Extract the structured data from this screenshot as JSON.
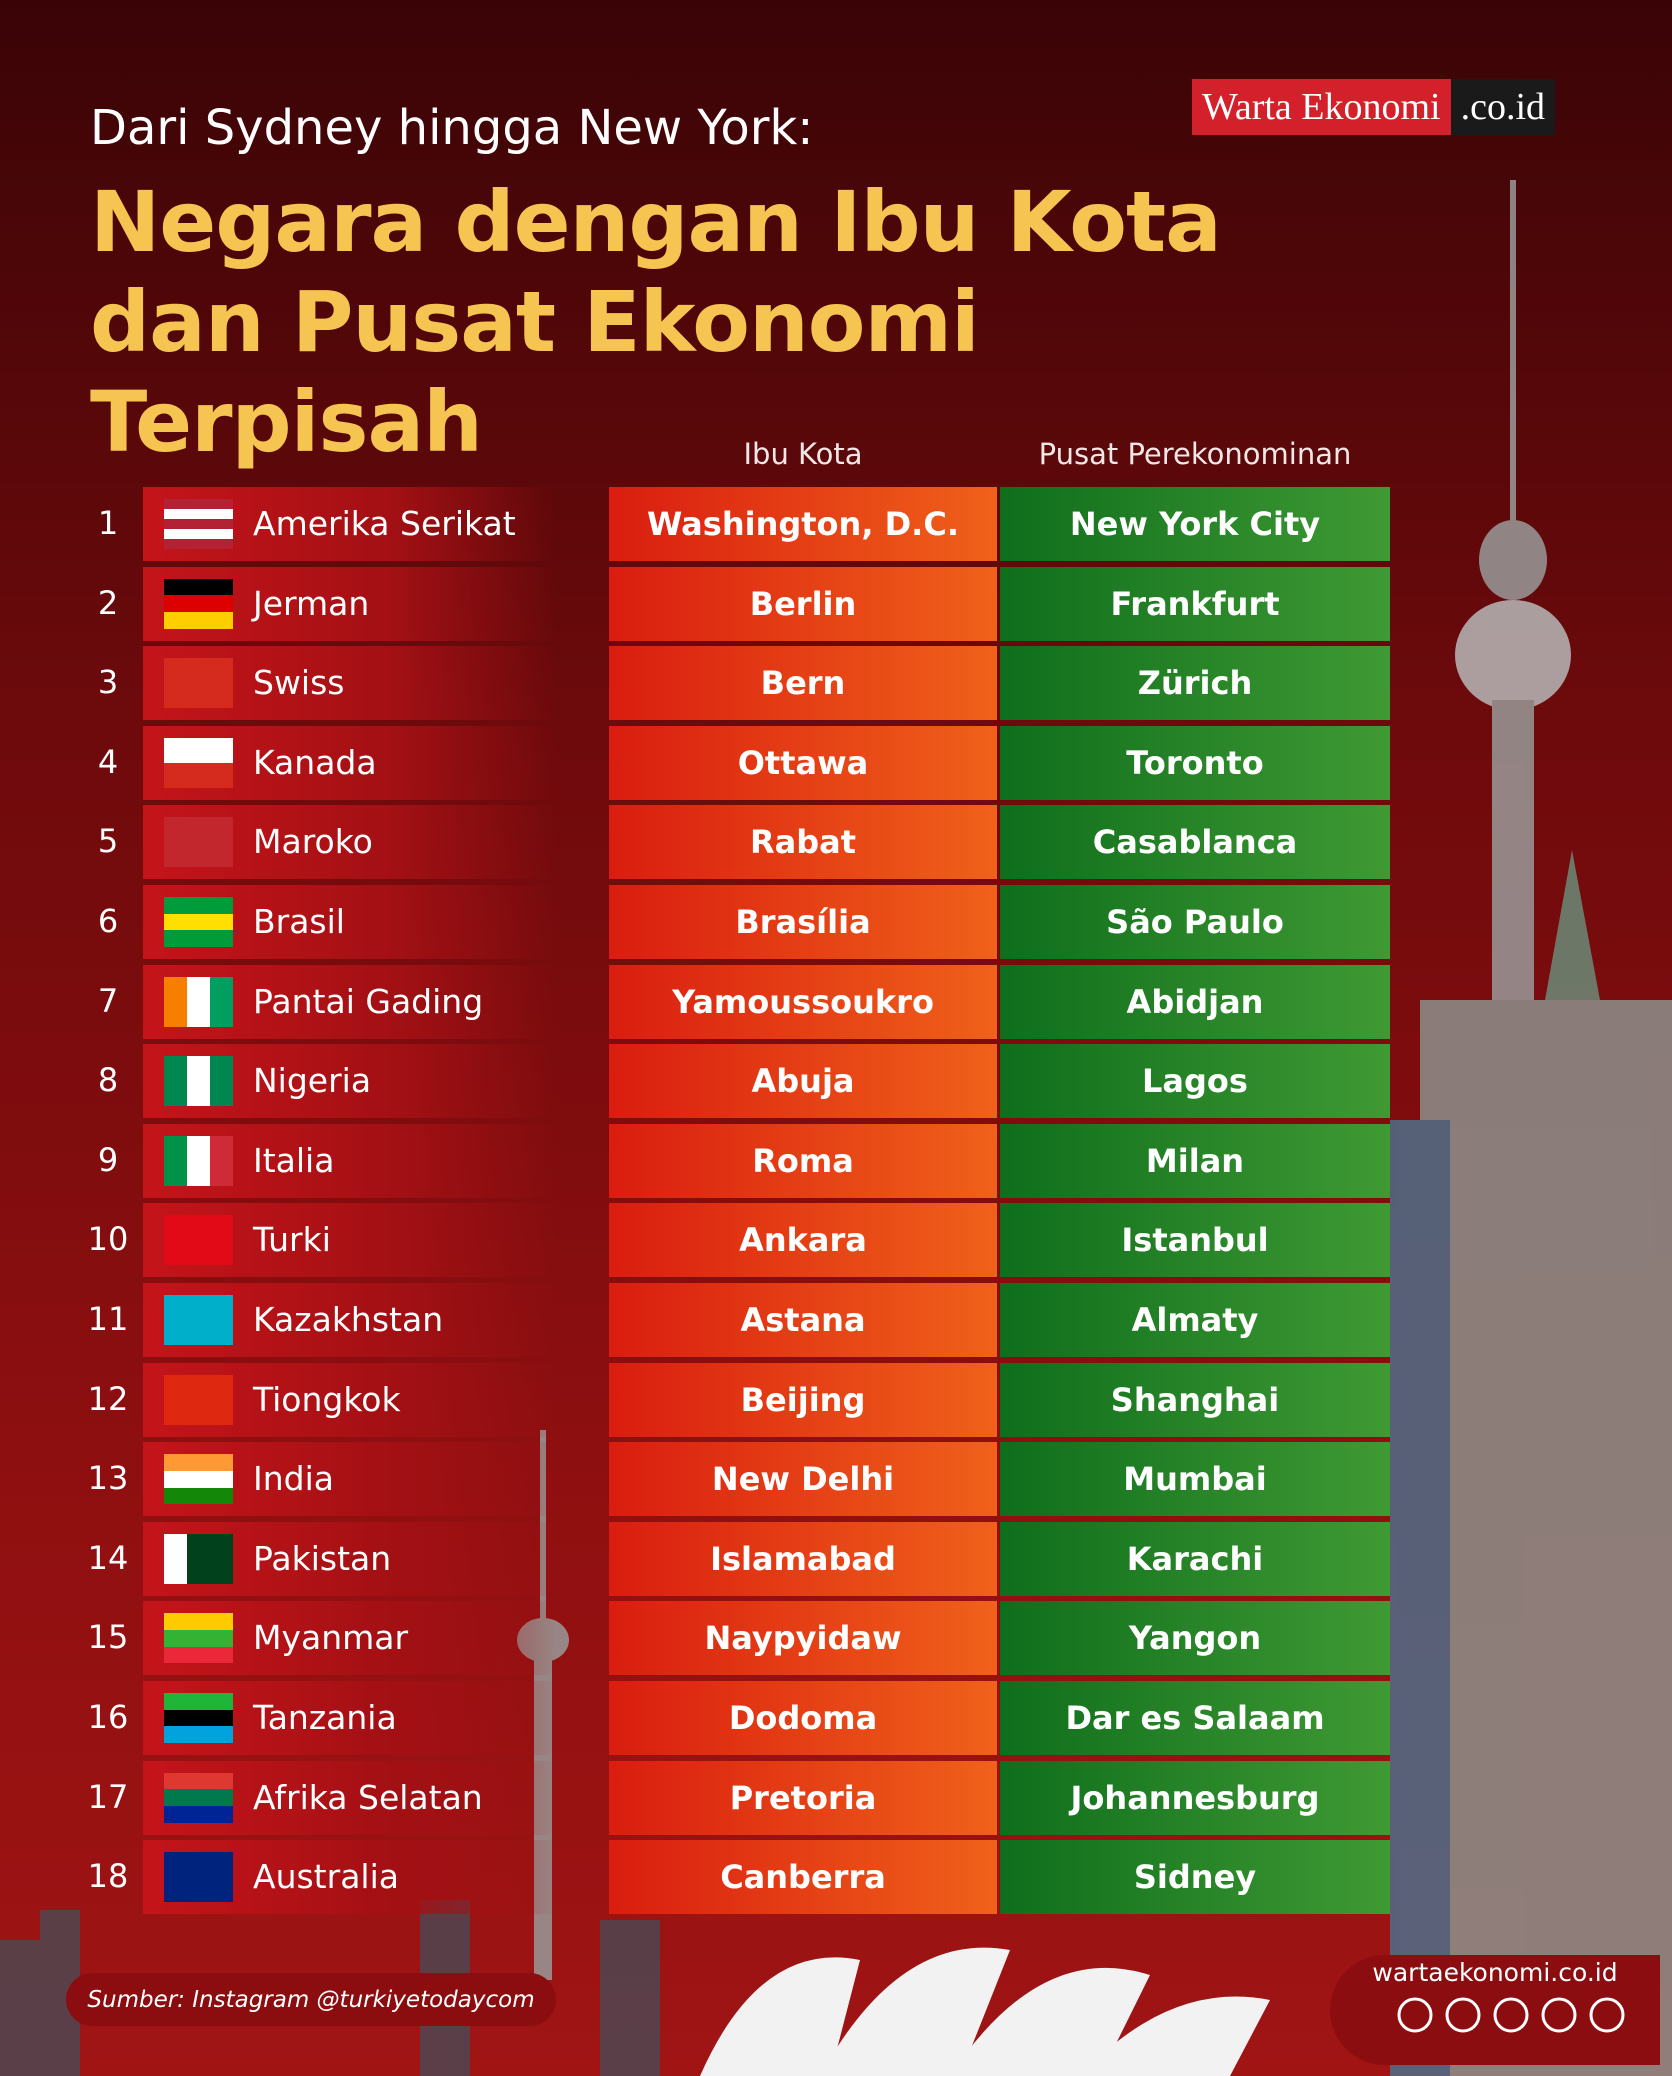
{
  "header": {
    "subtitle": "Dari Sydney hingga New York:",
    "title": "Negara dengan Ibu Kota dan Pusat Ekonomi Terpisah"
  },
  "logo": {
    "name": "Warta Ekonomi",
    "domain": ".co.id"
  },
  "table": {
    "columns": [
      "Ibu Kota",
      "Pusat Perekonominan"
    ],
    "rows": [
      [
        "1",
        "Amerika Serikat",
        "Washington, D.C.",
        "New York City"
      ],
      [
        "2",
        "Jerman",
        "Berlin",
        "Frankfurt"
      ],
      [
        "3",
        "Swiss",
        "Bern",
        "Zürich"
      ],
      [
        "4",
        "Kanada",
        "Ottawa",
        "Toronto"
      ],
      [
        "5",
        "Maroko",
        "Rabat",
        "Casablanca"
      ],
      [
        "6",
        "Brasil",
        "Brasília",
        "São Paulo"
      ],
      [
        "7",
        "Pantai Gading",
        "Yamoussoukro",
        "Abidjan"
      ],
      [
        "8",
        "Nigeria",
        "Abuja",
        "Lagos"
      ],
      [
        "9",
        "Italia",
        "Roma",
        "Milan"
      ],
      [
        "10",
        "Turki",
        "Ankara",
        "Istanbul"
      ],
      [
        "11",
        "Kazakhstan",
        "Astana",
        "Almaty"
      ],
      [
        "12",
        "Tiongkok",
        "Beijing",
        "Shanghai"
      ],
      [
        "13",
        "India",
        "New Delhi",
        "Mumbai"
      ],
      [
        "14",
        "Pakistan",
        "Islamabad",
        "Karachi"
      ],
      [
        "15",
        "Myanmar",
        "Naypyidaw",
        "Yangon"
      ],
      [
        "16",
        "Tanzania",
        "Dodoma",
        "Dar es Salaam"
      ],
      [
        "17",
        "Afrika Selatan",
        "Pretoria",
        "Johannesburg"
      ],
      [
        "18",
        "Australia",
        "Canberra",
        "Sidney"
      ]
    ]
  },
  "footer": {
    "source": "Sumber: Instagram @turkiyetodaycom",
    "website": "wartaekonomi.co.id"
  }
}
